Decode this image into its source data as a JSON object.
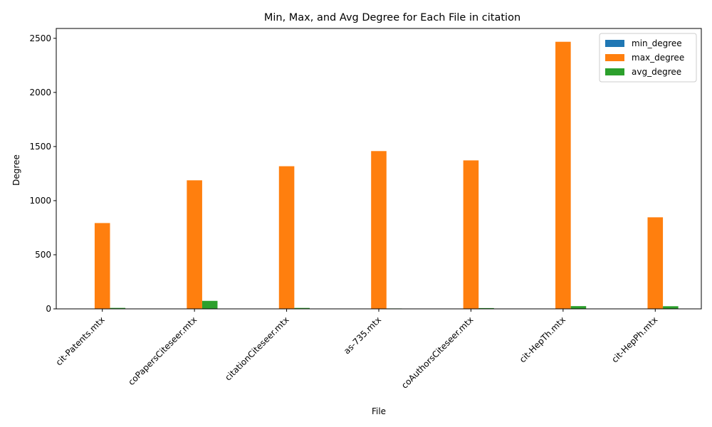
{
  "chart_data": {
    "type": "bar",
    "title": "Min, Max, and Avg Degree for Each File in citation",
    "xlabel": "File",
    "ylabel": "Degree",
    "categories": [
      "cit-Patents.mtx",
      "coPapersCiteseer.mtx",
      "citationCiteseer.mtx",
      "as-735.mtx",
      "coAuthorsCiteseer.mtx",
      "cit-HepTh.mtx",
      "cit-HepPh.mtx"
    ],
    "series": [
      {
        "name": "min_degree",
        "color": "#1f77b4",
        "values": [
          1,
          1,
          1,
          1,
          1,
          1,
          1
        ]
      },
      {
        "name": "max_degree",
        "color": "#ff7f0e",
        "values": [
          793,
          1188,
          1318,
          1458,
          1372,
          2468,
          846
        ]
      },
      {
        "name": "avg_degree",
        "color": "#2ca02c",
        "values": [
          8.8,
          73.9,
          8.6,
          3.9,
          7.2,
          25.4,
          24.4
        ]
      }
    ],
    "ylim": [
      0,
      2591
    ],
    "yticks": [
      0,
      500,
      1000,
      1500,
      2000,
      2500
    ],
    "legend": "top-right",
    "grid": false
  }
}
